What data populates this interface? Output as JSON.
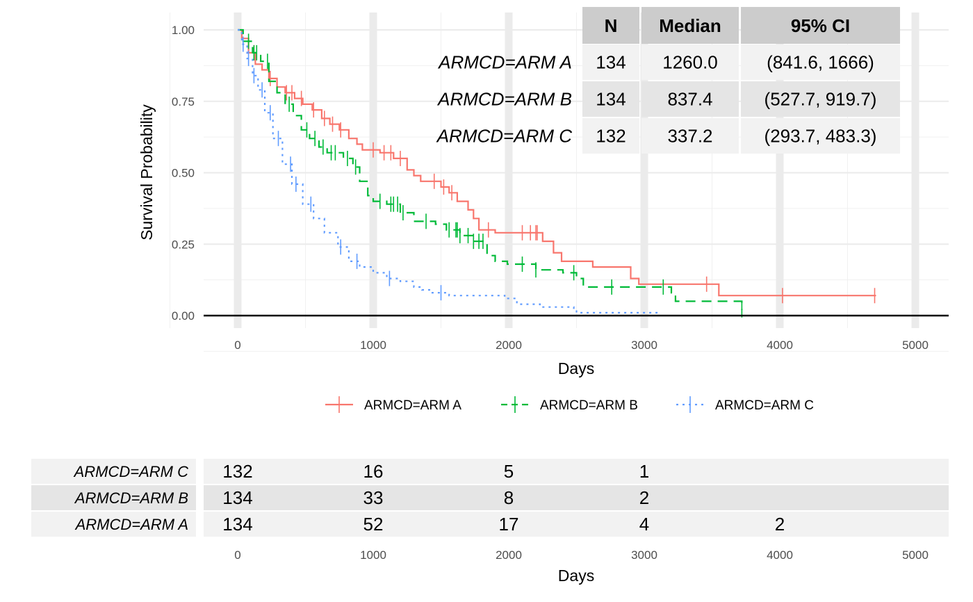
{
  "chart_data": {
    "type": "line",
    "title": "",
    "xlabel": "Days",
    "ylabel": "Survival Probability",
    "xlim": [
      0,
      5000
    ],
    "ylim": [
      0,
      1
    ],
    "x_ticks": [
      0,
      1000,
      2000,
      3000,
      4000,
      5000
    ],
    "y_ticks": [
      0,
      0.25,
      0.5,
      0.75,
      1
    ],
    "y_tick_labels": [
      "0.00",
      "0.25",
      "0.50",
      "0.75",
      "1.00"
    ],
    "grid": true,
    "legend_position": "bottom",
    "series": [
      {
        "name": "ARMCD=ARM A",
        "color": "#F8766D",
        "dash": "solid",
        "points": [
          [
            0,
            1.0
          ],
          [
            30,
            0.97
          ],
          [
            80,
            0.92
          ],
          [
            130,
            0.88
          ],
          [
            180,
            0.86
          ],
          [
            230,
            0.83
          ],
          [
            290,
            0.8
          ],
          [
            350,
            0.78
          ],
          [
            420,
            0.76
          ],
          [
            480,
            0.74
          ],
          [
            550,
            0.72
          ],
          [
            620,
            0.69
          ],
          [
            680,
            0.67
          ],
          [
            750,
            0.65
          ],
          [
            820,
            0.62
          ],
          [
            880,
            0.6
          ],
          [
            920,
            0.58
          ],
          [
            1050,
            0.57
          ],
          [
            1150,
            0.55
          ],
          [
            1250,
            0.51
          ],
          [
            1300,
            0.49
          ],
          [
            1350,
            0.47
          ],
          [
            1500,
            0.45
          ],
          [
            1560,
            0.43
          ],
          [
            1620,
            0.4
          ],
          [
            1700,
            0.37
          ],
          [
            1740,
            0.34
          ],
          [
            1780,
            0.3
          ],
          [
            1900,
            0.29
          ],
          [
            2150,
            0.29
          ],
          [
            2250,
            0.26
          ],
          [
            2330,
            0.22
          ],
          [
            2390,
            0.19
          ],
          [
            2620,
            0.17
          ],
          [
            2900,
            0.13
          ],
          [
            2960,
            0.11
          ],
          [
            3550,
            0.07
          ],
          [
            4710,
            0.07
          ]
        ],
        "censor": [
          120,
          240,
          360,
          400,
          470,
          560,
          640,
          700,
          760,
          1000,
          1080,
          1130,
          1200,
          1450,
          1520,
          1580,
          1850,
          2100,
          2160,
          2200,
          2210,
          3460,
          4020,
          4700
        ]
      },
      {
        "name": "ARMCD=ARM B",
        "color": "#00BA38",
        "dash": "dashed",
        "points": [
          [
            0,
            1.0
          ],
          [
            40,
            0.96
          ],
          [
            110,
            0.92
          ],
          [
            170,
            0.89
          ],
          [
            230,
            0.82
          ],
          [
            290,
            0.78
          ],
          [
            350,
            0.74
          ],
          [
            410,
            0.7
          ],
          [
            470,
            0.65
          ],
          [
            530,
            0.62
          ],
          [
            600,
            0.59
          ],
          [
            660,
            0.57
          ],
          [
            780,
            0.55
          ],
          [
            850,
            0.52
          ],
          [
            900,
            0.47
          ],
          [
            960,
            0.42
          ],
          [
            1000,
            0.4
          ],
          [
            1100,
            0.39
          ],
          [
            1200,
            0.36
          ],
          [
            1300,
            0.33
          ],
          [
            1460,
            0.32
          ],
          [
            1540,
            0.3
          ],
          [
            1640,
            0.28
          ],
          [
            1740,
            0.26
          ],
          [
            1840,
            0.21
          ],
          [
            1900,
            0.19
          ],
          [
            1990,
            0.18
          ],
          [
            2200,
            0.16
          ],
          [
            2400,
            0.15
          ],
          [
            2500,
            0.13
          ],
          [
            2550,
            0.1
          ],
          [
            3200,
            0.08
          ],
          [
            3230,
            0.05
          ],
          [
            3720,
            0.02
          ]
        ],
        "censor": [
          80,
          120,
          140,
          220,
          380,
          510,
          570,
          630,
          690,
          720,
          810,
          870,
          1050,
          1130,
          1150,
          1180,
          1220,
          1390,
          1560,
          1610,
          1620,
          1640,
          1700,
          1740,
          1780,
          1810,
          2100,
          2200,
          2480,
          2760,
          3140,
          3720
        ]
      },
      {
        "name": "ARMCD=ARM C",
        "color": "#619CFF",
        "dash": "dotted",
        "points": [
          [
            0,
            1.0
          ],
          [
            30,
            0.95
          ],
          [
            70,
            0.9
          ],
          [
            110,
            0.84
          ],
          [
            150,
            0.79
          ],
          [
            200,
            0.71
          ],
          [
            260,
            0.62
          ],
          [
            330,
            0.53
          ],
          [
            400,
            0.46
          ],
          [
            480,
            0.39
          ],
          [
            560,
            0.34
          ],
          [
            640,
            0.29
          ],
          [
            740,
            0.24
          ],
          [
            820,
            0.19
          ],
          [
            900,
            0.17
          ],
          [
            1000,
            0.15
          ],
          [
            1100,
            0.13
          ],
          [
            1200,
            0.12
          ],
          [
            1300,
            0.1
          ],
          [
            1360,
            0.09
          ],
          [
            1430,
            0.08
          ],
          [
            1560,
            0.07
          ],
          [
            1700,
            0.07
          ],
          [
            1970,
            0.06
          ],
          [
            2060,
            0.04
          ],
          [
            2230,
            0.03
          ],
          [
            2480,
            0.02
          ],
          [
            2500,
            0.01
          ],
          [
            3000,
            0.01
          ],
          [
            3100,
            0.01
          ]
        ],
        "censor": [
          40,
          80,
          120,
          180,
          240,
          300,
          390,
          430,
          540,
          760,
          880,
          1120,
          1500
        ]
      }
    ],
    "summary_table": {
      "headers": [
        "N",
        "Median",
        "95% CI"
      ],
      "rows": [
        {
          "label": "ARMCD=ARM A",
          "n": "134",
          "median": "1260.0",
          "ci": "(841.6, 1666)"
        },
        {
          "label": "ARMCD=ARM B",
          "n": "134",
          "median": "837.4",
          "ci": "(527.7, 919.7)"
        },
        {
          "label": "ARMCD=ARM C",
          "n": "132",
          "median": "337.2",
          "ci": "(293.7, 483.3)"
        }
      ]
    },
    "risk_table": {
      "xlabel": "Days",
      "x_ticks": [
        0,
        1000,
        2000,
        3000,
        4000,
        5000
      ],
      "rows": [
        {
          "label": "ARMCD=ARM C",
          "counts": [
            "132",
            "16",
            "5",
            "1",
            ""
          ]
        },
        {
          "label": "ARMCD=ARM B",
          "counts": [
            "134",
            "33",
            "8",
            "2",
            ""
          ]
        },
        {
          "label": "ARMCD=ARM A",
          "counts": [
            "134",
            "52",
            "17",
            "4",
            "2"
          ]
        }
      ]
    }
  }
}
